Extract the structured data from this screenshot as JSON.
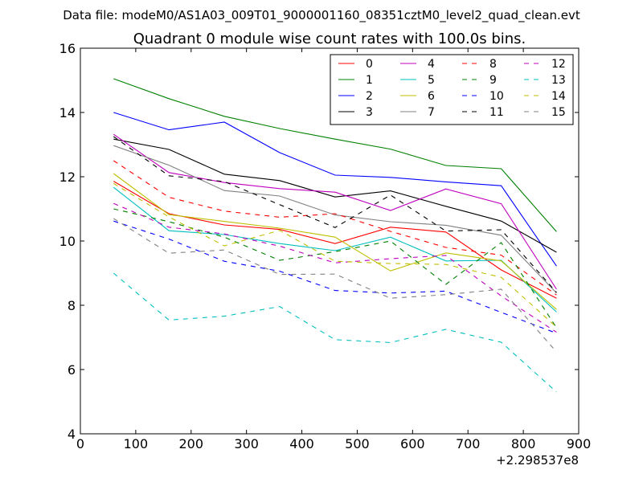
{
  "chart_data": {
    "type": "line",
    "suptitle": "Data file: modeM0/AS1A03_009T01_9000001160_08351cztM0_level2_quad_clean.evt",
    "title": "Quadrant 0 module wise count rates with 100.0s bins.",
    "xlabel": "",
    "ylabel": "",
    "x_offset_label": "+2.298537e8",
    "xlim": [
      0,
      900
    ],
    "ylim": [
      4,
      16
    ],
    "xticks": [
      0,
      100,
      200,
      300,
      400,
      500,
      600,
      700,
      800,
      900
    ],
    "yticks": [
      4,
      6,
      8,
      10,
      12,
      14,
      16
    ],
    "grid": false,
    "legend_position": "top-right",
    "legend_columns": 4,
    "x": [
      60,
      160,
      260,
      360,
      460,
      560,
      660,
      760,
      860
    ],
    "series": [
      {
        "name": "0",
        "color": "#ff0000",
        "dash": "solid",
        "values": [
          11.86,
          10.85,
          10.5,
          10.36,
          9.92,
          10.43,
          10.28,
          9.1,
          8.22
        ]
      },
      {
        "name": "1",
        "color": "#008000",
        "dash": "solid",
        "values": [
          15.05,
          14.43,
          13.88,
          13.5,
          13.17,
          12.86,
          12.35,
          12.25,
          10.29
        ]
      },
      {
        "name": "2",
        "color": "#0000ff",
        "dash": "solid",
        "values": [
          14.0,
          13.46,
          13.7,
          12.75,
          12.05,
          11.98,
          11.84,
          11.72,
          9.22
        ]
      },
      {
        "name": "3",
        "color": "#000000",
        "dash": "solid",
        "values": [
          13.17,
          12.85,
          12.08,
          11.88,
          11.37,
          11.56,
          11.08,
          10.62,
          9.65
        ]
      },
      {
        "name": "4",
        "color": "#bf00bf",
        "dash": "solid",
        "values": [
          13.32,
          12.13,
          11.82,
          11.63,
          11.52,
          10.95,
          11.62,
          11.16,
          8.5
        ]
      },
      {
        "name": "5",
        "color": "#00bfbf",
        "dash": "solid",
        "values": [
          11.67,
          10.32,
          10.2,
          9.92,
          9.7,
          10.12,
          9.38,
          9.4,
          7.79
        ]
      },
      {
        "name": "6",
        "color": "#bfbf00",
        "dash": "solid",
        "values": [
          12.1,
          10.82,
          10.61,
          10.4,
          10.12,
          9.07,
          9.63,
          9.38,
          7.87
        ]
      },
      {
        "name": "7",
        "color": "#808080",
        "dash": "solid",
        "values": [
          12.97,
          12.36,
          11.57,
          11.4,
          10.81,
          10.6,
          10.49,
          10.18,
          8.38
        ]
      },
      {
        "name": "8",
        "color": "#ff0000",
        "dash": "dashed",
        "values": [
          12.5,
          11.36,
          10.93,
          10.74,
          10.85,
          10.3,
          9.8,
          9.56,
          8.32
        ]
      },
      {
        "name": "9",
        "color": "#008000",
        "dash": "dashed",
        "values": [
          11.0,
          10.6,
          10.12,
          9.4,
          9.67,
          10.0,
          8.65,
          9.95,
          7.3
        ]
      },
      {
        "name": "10",
        "color": "#0000ff",
        "dash": "dashed",
        "values": [
          10.62,
          10.06,
          9.37,
          9.06,
          8.46,
          8.38,
          8.44,
          7.78,
          7.13
        ]
      },
      {
        "name": "11",
        "color": "#000000",
        "dash": "dashed",
        "values": [
          13.25,
          12.03,
          11.85,
          11.13,
          10.42,
          11.43,
          10.31,
          10.35,
          8.4
        ]
      },
      {
        "name": "12",
        "color": "#bf00bf",
        "dash": "dashed",
        "values": [
          11.17,
          10.43,
          10.22,
          9.84,
          9.32,
          9.45,
          9.55,
          8.29,
          7.16
        ]
      },
      {
        "name": "13",
        "color": "#00bfbf",
        "dash": "dashed",
        "values": [
          9.0,
          7.54,
          7.66,
          7.96,
          6.93,
          6.84,
          7.25,
          6.85,
          5.3
        ]
      },
      {
        "name": "14",
        "color": "#bfbf00",
        "dash": "dashed",
        "values": [
          11.79,
          10.75,
          9.85,
          10.33,
          9.37,
          9.3,
          9.27,
          8.87,
          7.32
        ]
      },
      {
        "name": "15",
        "color": "#808080",
        "dash": "dashed",
        "values": [
          10.7,
          9.62,
          9.72,
          8.96,
          8.97,
          8.22,
          8.33,
          8.5,
          6.55
        ]
      }
    ]
  }
}
